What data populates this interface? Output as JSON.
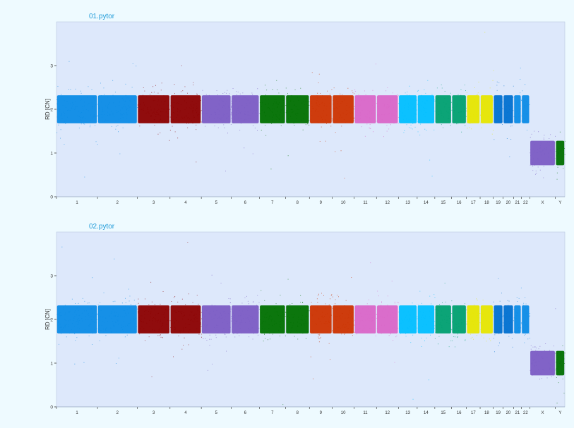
{
  "chart_data": [
    {
      "type": "scatter",
      "title": "01.pytor",
      "xlabel": "",
      "ylabel": "RD [CN]",
      "ylim": [
        0,
        4
      ],
      "yticks": [
        0,
        1,
        2,
        3
      ],
      "grid": false,
      "legend": "none",
      "chromosomes": [
        "1",
        "2",
        "3",
        "4",
        "5",
        "6",
        "7",
        "8",
        "9",
        "10",
        "11",
        "12",
        "13",
        "14",
        "15",
        "16",
        "17",
        "18",
        "19",
        "20",
        "21",
        "22",
        "X",
        "Y"
      ],
      "series": [
        {
          "chrom": "1",
          "cn": 2.0
        },
        {
          "chrom": "2",
          "cn": 2.0
        },
        {
          "chrom": "3",
          "cn": 2.0
        },
        {
          "chrom": "4",
          "cn": 2.0
        },
        {
          "chrom": "5",
          "cn": 2.0
        },
        {
          "chrom": "6",
          "cn": 2.0
        },
        {
          "chrom": "7",
          "cn": 2.0
        },
        {
          "chrom": "8",
          "cn": 2.0
        },
        {
          "chrom": "9",
          "cn": 2.0
        },
        {
          "chrom": "10",
          "cn": 2.0
        },
        {
          "chrom": "11",
          "cn": 2.0
        },
        {
          "chrom": "12",
          "cn": 2.0
        },
        {
          "chrom": "13",
          "cn": 2.0
        },
        {
          "chrom": "14",
          "cn": 2.0
        },
        {
          "chrom": "15",
          "cn": 2.0
        },
        {
          "chrom": "16",
          "cn": 2.0
        },
        {
          "chrom": "17",
          "cn": 2.0
        },
        {
          "chrom": "18",
          "cn": 2.0
        },
        {
          "chrom": "19",
          "cn": 2.0
        },
        {
          "chrom": "20",
          "cn": 2.0
        },
        {
          "chrom": "21",
          "cn": 2.0
        },
        {
          "chrom": "22",
          "cn": 2.0
        },
        {
          "chrom": "X",
          "cn": 1.0
        },
        {
          "chrom": "Y",
          "cn": 1.0
        }
      ]
    },
    {
      "type": "scatter",
      "title": "02.pytor",
      "xlabel": "",
      "ylabel": "RD [CN]",
      "ylim": [
        0,
        4
      ],
      "yticks": [
        0,
        1,
        2,
        3
      ],
      "grid": false,
      "legend": "none",
      "chromosomes": [
        "1",
        "2",
        "3",
        "4",
        "5",
        "6",
        "7",
        "8",
        "9",
        "10",
        "11",
        "12",
        "13",
        "14",
        "15",
        "16",
        "17",
        "18",
        "19",
        "20",
        "21",
        "22",
        "X",
        "Y"
      ],
      "series": [
        {
          "chrom": "1",
          "cn": 2.0
        },
        {
          "chrom": "2",
          "cn": 2.0
        },
        {
          "chrom": "3",
          "cn": 2.0
        },
        {
          "chrom": "4",
          "cn": 2.0
        },
        {
          "chrom": "5",
          "cn": 2.0
        },
        {
          "chrom": "6",
          "cn": 2.0
        },
        {
          "chrom": "7",
          "cn": 2.0
        },
        {
          "chrom": "8",
          "cn": 2.0
        },
        {
          "chrom": "9",
          "cn": 2.0
        },
        {
          "chrom": "10",
          "cn": 2.0
        },
        {
          "chrom": "11",
          "cn": 2.0
        },
        {
          "chrom": "12",
          "cn": 2.0
        },
        {
          "chrom": "13",
          "cn": 2.0
        },
        {
          "chrom": "14",
          "cn": 2.0
        },
        {
          "chrom": "15",
          "cn": 2.0
        },
        {
          "chrom": "16",
          "cn": 2.0
        },
        {
          "chrom": "17",
          "cn": 2.0
        },
        {
          "chrom": "18",
          "cn": 2.0
        },
        {
          "chrom": "19",
          "cn": 2.0
        },
        {
          "chrom": "20",
          "cn": 2.0
        },
        {
          "chrom": "21",
          "cn": 2.0
        },
        {
          "chrom": "22",
          "cn": 2.0
        },
        {
          "chrom": "X",
          "cn": 1.0
        },
        {
          "chrom": "Y",
          "cn": 1.0
        }
      ]
    }
  ],
  "colors": {
    "page_bg": "#eefaff",
    "plot_bg": "#dde8fb",
    "axis": "#333333",
    "title": "#1e9ad8",
    "chrom_palette": [
      "#0b8be6",
      "#0b8be6",
      "#8b0000",
      "#8b0000",
      "#7b5cc4",
      "#7b5cc4",
      "#007000",
      "#007000",
      "#cc3300",
      "#cc3300",
      "#d966c8",
      "#d966c8",
      "#00bfff",
      "#00bfff",
      "#00a070",
      "#00a070",
      "#e6e600",
      "#e6e600",
      "#0070d0",
      "#0070d0",
      "#0b8be6",
      "#0b8be6",
      "#7b5cc4",
      "#007000"
    ]
  }
}
